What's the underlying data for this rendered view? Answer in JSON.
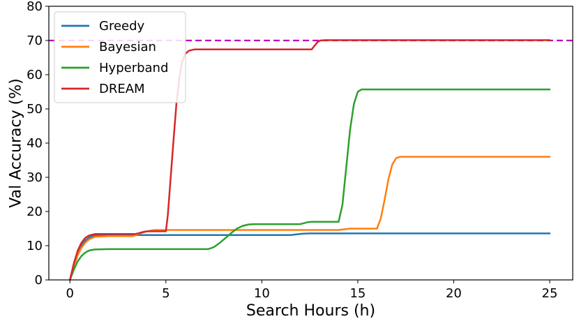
{
  "chart_data": {
    "type": "line",
    "xlabel": "Search Hours (h)",
    "ylabel": "Val Accuracy (%)",
    "xlim": [
      -1.1,
      26.2
    ],
    "ylim": [
      0,
      80
    ],
    "xticks": [
      0,
      5,
      10,
      15,
      20,
      25
    ],
    "yticks": [
      0,
      10,
      20,
      30,
      40,
      50,
      60,
      70,
      80
    ],
    "grid": false,
    "legend_position": "top-left",
    "reference_line": {
      "y": 70,
      "style": "dashed",
      "color": "#bf00bf"
    },
    "series": [
      {
        "name": "Greedy",
        "color": "#1f77b4",
        "x": [
          0,
          0.2,
          0.4,
          0.6,
          0.8,
          1.0,
          1.3,
          2,
          4,
          6,
          8,
          10,
          11.5,
          11.8,
          12.1,
          12.5,
          15,
          20,
          25
        ],
        "y": [
          0,
          4.5,
          7.8,
          10.0,
          11.5,
          12.4,
          13.0,
          13.1,
          13.1,
          13.1,
          13.1,
          13.1,
          13.1,
          13.3,
          13.5,
          13.6,
          13.6,
          13.6,
          13.6
        ]
      },
      {
        "name": "Bayesian",
        "color": "#ff7f0e",
        "x": [
          0,
          0.2,
          0.4,
          0.6,
          0.8,
          1.0,
          1.3,
          2,
          3.3,
          3.6,
          4.0,
          4.4,
          6,
          10,
          14,
          14.3,
          14.6,
          15,
          16,
          16.2,
          16.4,
          16.6,
          16.8,
          17.0,
          17.2,
          20,
          25
        ],
        "y": [
          0,
          4.0,
          7.2,
          9.4,
          10.9,
          11.9,
          12.6,
          12.8,
          12.8,
          13.5,
          14.2,
          14.6,
          14.6,
          14.6,
          14.6,
          14.8,
          15.0,
          15.0,
          15.0,
          18.0,
          23.5,
          29.5,
          33.8,
          35.6,
          36.0,
          36.0,
          36.0
        ]
      },
      {
        "name": "Hyperband",
        "color": "#2ca02c",
        "x": [
          0,
          0.2,
          0.4,
          0.6,
          0.8,
          1.0,
          1.3,
          2,
          4,
          6,
          7.2,
          7.5,
          7.8,
          8.1,
          8.4,
          8.7,
          9.0,
          9.3,
          9.6,
          10,
          12,
          12.2,
          12.4,
          12.6,
          14,
          14.2,
          14.4,
          14.6,
          14.8,
          15.0,
          15.2,
          20,
          25
        ],
        "y": [
          0,
          3.0,
          5.4,
          7.0,
          8.0,
          8.6,
          8.9,
          9.0,
          9.0,
          9.0,
          9.0,
          9.6,
          10.8,
          12.2,
          13.7,
          15.0,
          15.8,
          16.2,
          16.3,
          16.3,
          16.3,
          16.6,
          16.9,
          17.0,
          17.0,
          22.0,
          33.0,
          44.0,
          51.5,
          55.0,
          55.7,
          55.7,
          55.7
        ]
      },
      {
        "name": "DREAM",
        "color": "#d62728",
        "x": [
          0,
          0.2,
          0.4,
          0.6,
          0.8,
          1.0,
          1.3,
          2,
          3.4,
          3.6,
          3.8,
          4.0,
          5.0,
          5.1,
          5.25,
          5.4,
          5.55,
          5.7,
          5.85,
          6.0,
          6.2,
          6.5,
          7,
          9,
          11,
          12.6,
          12.75,
          12.9,
          13.05,
          13.3,
          15,
          20,
          25
        ],
        "y": [
          0,
          4.8,
          8.5,
          10.9,
          12.3,
          13.0,
          13.4,
          13.4,
          13.4,
          13.7,
          14.0,
          14.2,
          14.2,
          19.0,
          30.0,
          41.0,
          51.5,
          59.0,
          63.8,
          66.0,
          67.0,
          67.4,
          67.4,
          67.4,
          67.4,
          67.4,
          68.5,
          69.5,
          70.0,
          70.1,
          70.1,
          70.1,
          70.1
        ]
      }
    ]
  }
}
